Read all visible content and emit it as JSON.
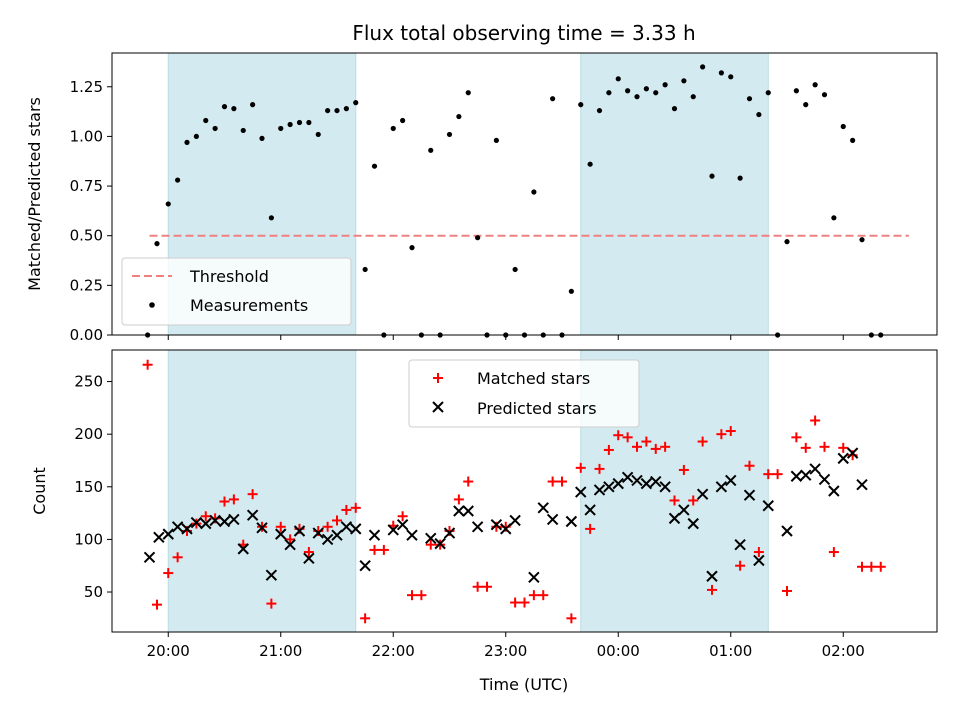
{
  "chart_data": [
    {
      "type": "scatter",
      "title": "Flux total observing time = 3.33 h",
      "xlabel": "",
      "ylabel": "Matched/Predicted stars",
      "xlim": [
        "19:30",
        "02:50"
      ],
      "ylim": [
        0,
        1.42
      ],
      "yticks": [
        0.0,
        0.25,
        0.5,
        0.75,
        1.0,
        1.25
      ],
      "ytick_labels": [
        "0.00",
        "0.25",
        "0.50",
        "0.75",
        "1.00",
        "1.25"
      ],
      "shaded_ranges": [
        [
          "20:00",
          "21:40"
        ],
        [
          "23:40",
          "01:20"
        ]
      ],
      "shade_color": "#d3ebf0",
      "threshold": {
        "label": "Threshold",
        "y": 0.5,
        "x_range": [
          "19:50",
          "02:35"
        ],
        "color": "#f08080"
      },
      "legend": {
        "placement": "lower-left",
        "entries": [
          "Threshold",
          "Measurements"
        ]
      },
      "series": [
        {
          "name": "Measurements",
          "color": "#000000",
          "marker": "dot",
          "x": [
            "19:49",
            "19:54",
            "20:00",
            "20:05",
            "20:10",
            "20:15",
            "20:20",
            "20:25",
            "20:30",
            "20:35",
            "20:40",
            "20:45",
            "20:50",
            "20:55",
            "21:00",
            "21:05",
            "21:10",
            "21:15",
            "21:20",
            "21:25",
            "21:30",
            "21:35",
            "21:40",
            "21:45",
            "21:50",
            "21:55",
            "22:00",
            "22:05",
            "22:10",
            "22:15",
            "22:20",
            "22:25",
            "22:30",
            "22:35",
            "22:40",
            "22:45",
            "22:50",
            "22:55",
            "23:00",
            "23:05",
            "23:10",
            "23:15",
            "23:20",
            "23:25",
            "23:30",
            "23:35",
            "23:40",
            "23:45",
            "23:50",
            "23:55",
            "00:00",
            "00:05",
            "00:10",
            "00:15",
            "00:20",
            "00:25",
            "00:30",
            "00:35",
            "00:40",
            "00:45",
            "00:50",
            "00:55",
            "01:00",
            "01:05",
            "01:10",
            "01:15",
            "01:20",
            "01:25",
            "01:30",
            "01:35",
            "01:40",
            "01:45",
            "01:50",
            "01:55",
            "02:00",
            "02:05",
            "02:10",
            "02:15",
            "02:20"
          ],
          "y": [
            0.0,
            0.46,
            0.66,
            0.78,
            0.97,
            1.0,
            1.08,
            1.04,
            1.15,
            1.14,
            1.03,
            1.16,
            0.99,
            0.59,
            1.04,
            1.06,
            1.07,
            1.07,
            1.01,
            1.13,
            1.13,
            1.14,
            1.17,
            0.33,
            0.85,
            0.0,
            1.04,
            1.08,
            0.44,
            0.0,
            0.93,
            0.0,
            1.01,
            1.1,
            1.22,
            0.49,
            0.0,
            0.98,
            0.0,
            0.33,
            0.0,
            0.72,
            0.0,
            1.19,
            0.0,
            0.22,
            1.16,
            0.86,
            1.13,
            1.22,
            1.29,
            1.23,
            1.2,
            1.24,
            1.22,
            1.26,
            1.14,
            1.28,
            1.2,
            1.35,
            0.8,
            1.32,
            1.3,
            0.79,
            1.19,
            1.11,
            1.22,
            0.0,
            0.47,
            1.23,
            1.16,
            1.26,
            1.21,
            0.59,
            1.05,
            0.98,
            0.48,
            0.0,
            0.0
          ]
        }
      ]
    },
    {
      "type": "scatter",
      "title": "",
      "xlabel": "Time (UTC)",
      "ylabel": "Count",
      "xlim": [
        "19:30",
        "02:50"
      ],
      "ylim": [
        12,
        280
      ],
      "yticks": [
        50,
        100,
        150,
        200,
        250
      ],
      "ytick_labels": [
        "50",
        "100",
        "150",
        "200",
        "250"
      ],
      "xticks": [
        "20:00",
        "21:00",
        "22:00",
        "23:00",
        "00:00",
        "01:00",
        "02:00"
      ],
      "xtick_labels": [
        "20:00",
        "21:00",
        "22:00",
        "23:00",
        "00:00",
        "01:00",
        "02:00"
      ],
      "shaded_ranges": [
        [
          "20:00",
          "21:40"
        ],
        [
          "23:40",
          "01:20"
        ]
      ],
      "shade_color": "#d3ebf0",
      "legend": {
        "placement": "top-center",
        "entries": [
          "Matched stars",
          "Predicted stars"
        ]
      },
      "series": [
        {
          "name": "Matched stars",
          "color": "#ff0000",
          "marker": "plus",
          "x": [
            "19:49",
            "19:54",
            "20:00",
            "20:05",
            "20:10",
            "20:15",
            "20:20",
            "20:25",
            "20:30",
            "20:35",
            "20:40",
            "20:45",
            "20:50",
            "20:55",
            "21:00",
            "21:05",
            "21:10",
            "21:15",
            "21:20",
            "21:25",
            "21:30",
            "21:35",
            "21:40",
            "21:45",
            "21:50",
            "21:55",
            "22:00",
            "22:05",
            "22:10",
            "22:15",
            "22:20",
            "22:25",
            "22:30",
            "22:35",
            "22:40",
            "22:45",
            "22:50",
            "22:55",
            "23:00",
            "23:05",
            "23:10",
            "23:15",
            "23:20",
            "23:25",
            "23:30",
            "23:35",
            "23:40",
            "23:45",
            "23:50",
            "23:55",
            "00:00",
            "00:05",
            "00:10",
            "00:15",
            "00:20",
            "00:25",
            "00:30",
            "00:35",
            "00:40",
            "00:45",
            "00:50",
            "00:55",
            "01:00",
            "01:05",
            "01:10",
            "01:15",
            "01:20",
            "01:25",
            "01:30",
            "01:35",
            "01:40",
            "01:45",
            "01:50",
            "01:55",
            "02:00",
            "02:05",
            "02:10",
            "02:15",
            "02:20"
          ],
          "y": [
            266,
            38,
            68,
            83,
            108,
            115,
            122,
            120,
            136,
            138,
            95,
            143,
            112,
            39,
            112,
            100,
            110,
            88,
            108,
            112,
            118,
            128,
            130,
            25,
            90,
            90,
            113,
            122,
            47,
            47,
            95,
            95,
            108,
            138,
            155,
            55,
            55,
            112,
            112,
            40,
            40,
            47,
            47,
            155,
            155,
            25,
            168,
            110,
            167,
            185,
            199,
            197,
            188,
            193,
            186,
            188,
            137,
            166,
            137,
            193,
            52,
            200,
            203,
            75,
            170,
            88,
            162,
            162,
            51,
            197,
            187,
            213,
            188,
            88,
            187,
            180,
            74,
            74,
            74
          ]
        },
        {
          "name": "Predicted stars",
          "color": "#000000",
          "marker": "x",
          "x": [
            "19:50",
            "19:55",
            "20:00",
            "20:05",
            "20:10",
            "20:15",
            "20:20",
            "20:25",
            "20:30",
            "20:35",
            "20:40",
            "20:45",
            "20:50",
            "20:55",
            "21:00",
            "21:05",
            "21:10",
            "21:15",
            "21:20",
            "21:25",
            "21:30",
            "21:35",
            "21:40",
            "21:45",
            "21:50",
            "22:00",
            "22:05",
            "22:10",
            "22:20",
            "22:25",
            "22:30",
            "22:35",
            "22:40",
            "22:45",
            "22:55",
            "23:00",
            "23:05",
            "23:15",
            "23:20",
            "23:25",
            "23:35",
            "23:40",
            "23:45",
            "23:50",
            "23:55",
            "00:00",
            "00:05",
            "00:10",
            "00:15",
            "00:20",
            "00:25",
            "00:30",
            "00:35",
            "00:40",
            "00:45",
            "00:50",
            "00:55",
            "01:00",
            "01:05",
            "01:10",
            "01:15",
            "01:20",
            "01:30",
            "01:35",
            "01:40",
            "01:45",
            "01:50",
            "01:55",
            "02:00",
            "02:05",
            "02:10"
          ],
          "y": [
            83,
            102,
            105,
            112,
            110,
            116,
            115,
            118,
            117,
            119,
            91,
            123,
            111,
            66,
            105,
            95,
            108,
            82,
            106,
            100,
            104,
            112,
            110,
            75,
            104,
            109,
            114,
            104,
            101,
            96,
            106,
            127,
            127,
            112,
            114,
            110,
            118,
            64,
            130,
            119,
            117,
            145,
            128,
            147,
            150,
            153,
            159,
            156,
            153,
            155,
            150,
            120,
            128,
            115,
            143,
            65,
            150,
            156,
            95,
            142,
            80,
            132,
            108,
            160,
            161,
            167,
            157,
            146,
            177,
            182,
            152
          ]
        }
      ]
    }
  ]
}
